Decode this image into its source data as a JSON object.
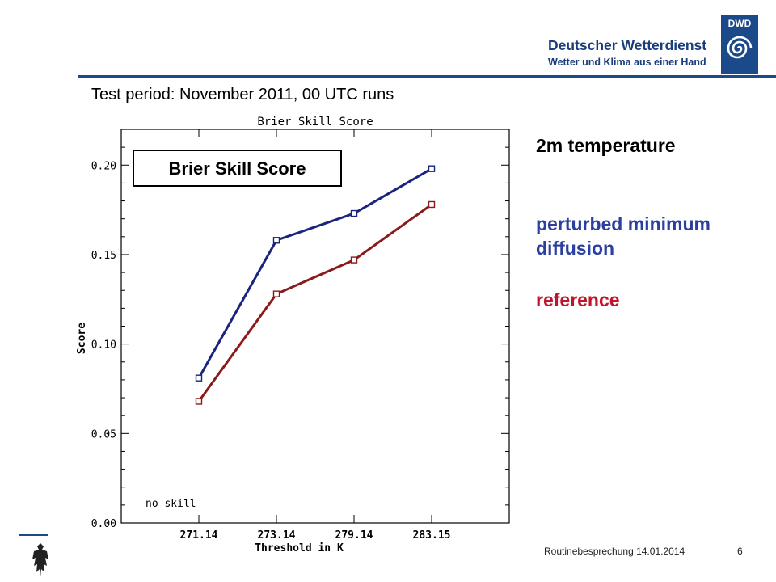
{
  "header": {
    "org_name": "Deutscher Wetterdienst",
    "org_tagline": "Wetter und Klima aus einer Hand",
    "logo_abbr": "DWD",
    "logo_icon": "swirl-icon"
  },
  "slide": {
    "subtitle": "Test period: November 2011, 00 UTC runs",
    "variable_label": "2m temperature",
    "legend_perturbed": "perturbed minimum diffusion",
    "legend_reference": "reference",
    "footer": "Routinebesprechung 14.01.2014",
    "page_number": "6",
    "footer_icon": "federal-eagle-icon"
  },
  "colors": {
    "brand_blue": "#1a4a8a",
    "perturbed": "#1a237e",
    "reference": "#8b1a1a",
    "perturbed_text": "#2a3fa0",
    "reference_text": "#c0152a"
  },
  "chart_data": {
    "type": "line",
    "title": "Brier Skill Score",
    "box_label": "Brier Skill Score",
    "xlabel": "Threshold in K",
    "ylabel": "Score",
    "categories": [
      "271.14",
      "273.14",
      "279.14",
      "283.15"
    ],
    "yticks": [
      "0.00",
      "0.05",
      "0.10",
      "0.15",
      "0.20"
    ],
    "ylim": [
      0,
      0.22
    ],
    "annotation": "no skill",
    "grid": false,
    "series": [
      {
        "name": "perturbed minimum diffusion",
        "color": "#1a237e",
        "values": [
          0.081,
          0.158,
          0.173,
          0.198
        ]
      },
      {
        "name": "reference",
        "color": "#8b1a1a",
        "values": [
          0.068,
          0.128,
          0.147,
          0.178
        ]
      }
    ]
  }
}
